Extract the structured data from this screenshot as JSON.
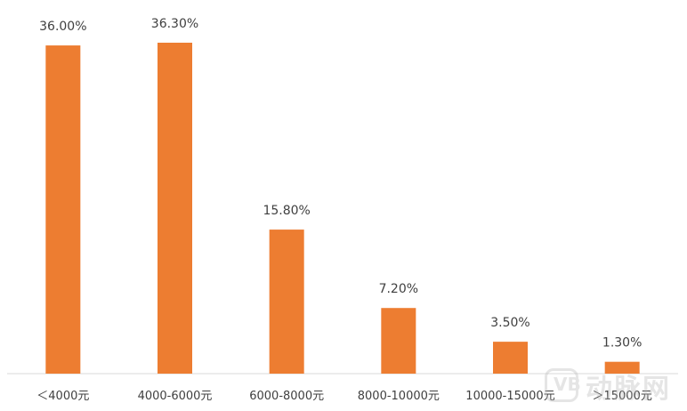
{
  "chart_data": {
    "type": "bar",
    "categories": [
      "＜4000元",
      "4000-6000元",
      "6000-8000元",
      "8000-10000元",
      "10000-15000元",
      "＞15000元"
    ],
    "values": [
      36.0,
      36.3,
      15.8,
      7.2,
      3.5,
      1.3
    ],
    "data_labels": [
      "36.00%",
      "36.30%",
      "15.80%",
      "7.20%",
      "3.50%",
      "1.30%"
    ],
    "title": "",
    "xlabel": "",
    "ylabel": "",
    "ylim": [
      0,
      36.3
    ],
    "grid": false,
    "bar_color": "#ED7D31",
    "axis_color": "#D9D9D9"
  },
  "watermark": {
    "logo": "VB",
    "text": "动脉网"
  }
}
